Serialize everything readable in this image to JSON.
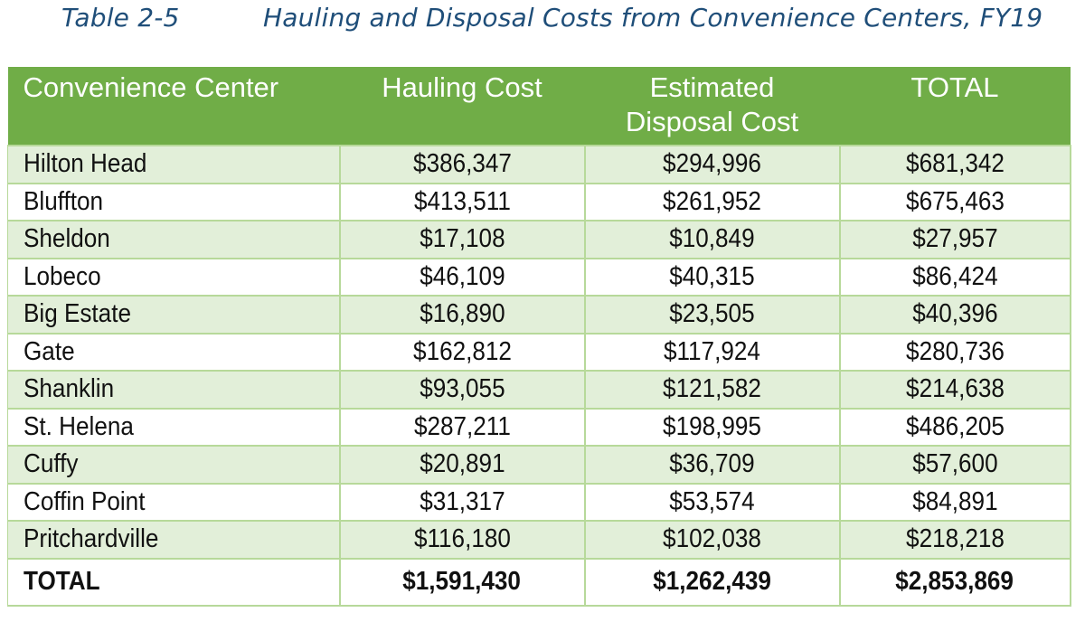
{
  "caption": {
    "label": "Table 2-5",
    "title": "Hauling and Disposal Costs from Convenience Centers, FY19"
  },
  "columns": [
    {
      "label": "Convenience Center"
    },
    {
      "label": "Hauling Cost"
    },
    {
      "label_line1": "Estimated",
      "label_line2": "Disposal Cost"
    },
    {
      "label": "TOTAL"
    }
  ],
  "rows": [
    {
      "name": "Hilton Head",
      "hauling": "$386,347",
      "disposal": "$294,996",
      "total": "$681,342"
    },
    {
      "name": "Bluffton",
      "hauling": "$413,511",
      "disposal": "$261,952",
      "total": "$675,463"
    },
    {
      "name": "Sheldon",
      "hauling": "$17,108",
      "disposal": "$10,849",
      "total": "$27,957"
    },
    {
      "name": "Lobeco",
      "hauling": "$46,109",
      "disposal": "$40,315",
      "total": "$86,424"
    },
    {
      "name": "Big Estate",
      "hauling": "$16,890",
      "disposal": "$23,505",
      "total": "$40,396"
    },
    {
      "name": "Gate",
      "hauling": "$162,812",
      "disposal": "$117,924",
      "total": "$280,736"
    },
    {
      "name": "Shanklin",
      "hauling": "$93,055",
      "disposal": "$121,582",
      "total": "$214,638"
    },
    {
      "name": "St. Helena",
      "hauling": "$287,211",
      "disposal": "$198,995",
      "total": "$486,205"
    },
    {
      "name": "Cuffy",
      "hauling": "$20,891",
      "disposal": "$36,709",
      "total": "$57,600"
    },
    {
      "name": "Coffin Point",
      "hauling": "$31,317",
      "disposal": "$53,574",
      "total": "$84,891"
    },
    {
      "name": "Pritchardville",
      "hauling": "$116,180",
      "disposal": "$102,038",
      "total": "$218,218"
    }
  ],
  "total_row": {
    "name": "TOTAL",
    "hauling": "$1,591,430",
    "disposal": "$1,262,439",
    "total": "$2,853,869"
  },
  "colors": {
    "header_green": "#70ad47",
    "row_band_green": "#e2efd9",
    "caption_blue": "#1f4e79"
  }
}
